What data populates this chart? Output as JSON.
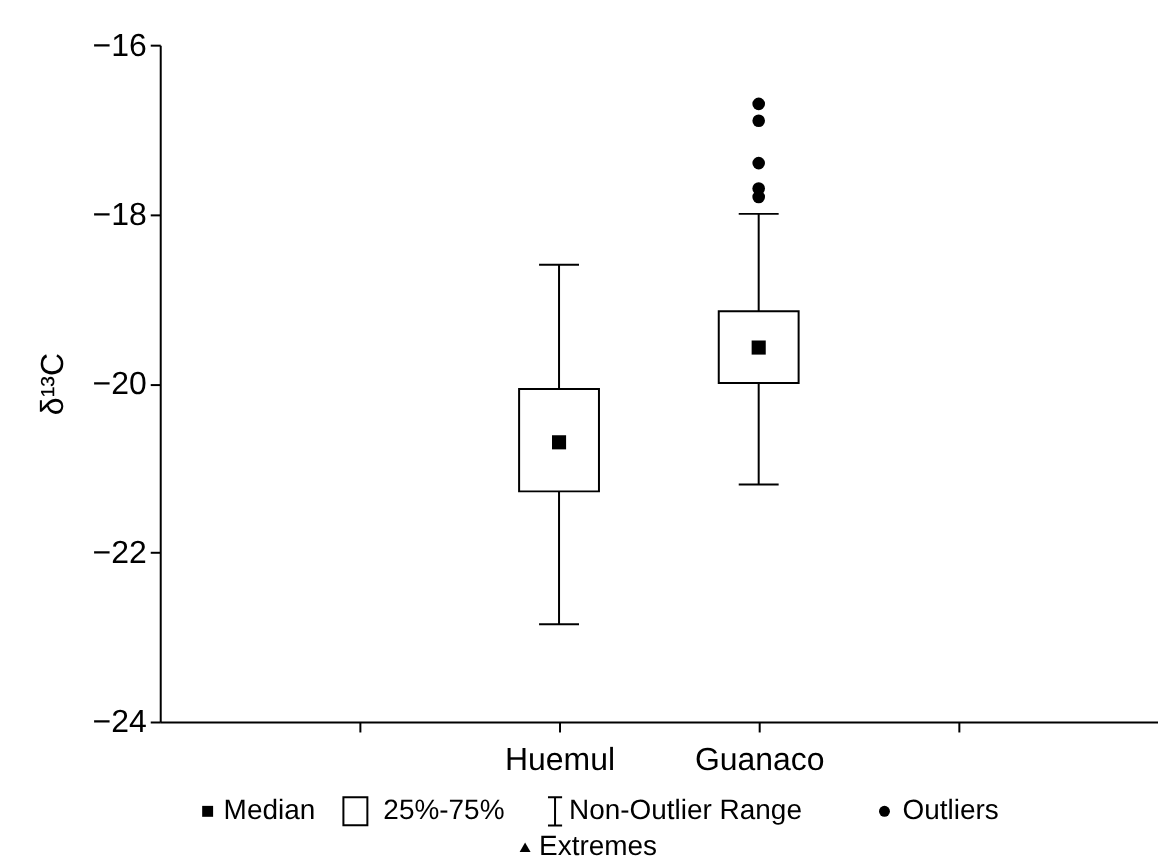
{
  "chart_data": {
    "type": "box",
    "categories": [
      "Huemul",
      "Guanaco"
    ],
    "boxes": [
      {
        "low": -22.85,
        "q1": -21.28,
        "median": -20.7,
        "q3": -20.07,
        "high": -18.6
      },
      {
        "low": -21.2,
        "q1": -20.0,
        "median": -19.58,
        "q3": -19.15,
        "high": -18.0,
        "outliers": [
          -16.7,
          -16.9,
          -17.4,
          -17.7,
          -17.8
        ]
      }
    ],
    "ylabel": "δ¹³C",
    "ylim": [
      -24,
      -16
    ],
    "yticks": [
      -24,
      -22,
      -20,
      -18,
      -16
    ],
    "grid": false,
    "annotations": [
      "Median",
      "25%-75%",
      "Non-Outlier Range",
      "Outliers",
      "Extremes"
    ]
  }
}
